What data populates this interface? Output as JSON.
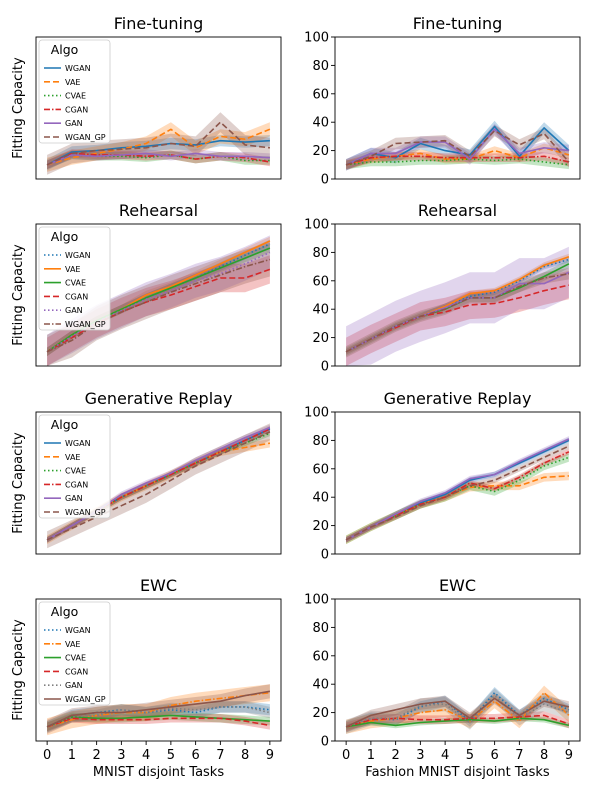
{
  "chart_data": [
    {
      "type": "line",
      "title": "Fine-tuning",
      "ylabel": "Fitting Capacity",
      "xlabel": "",
      "ylim": [
        0,
        100
      ],
      "yticks_visible": false,
      "xticks_visible": false,
      "legend": {
        "title": "Algo",
        "location": "top-left"
      },
      "series": [
        {
          "name": "WGAN",
          "style": "solid",
          "color": "#1f77b4",
          "values": [
            10,
            19,
            20,
            22,
            23,
            25,
            24,
            27,
            26,
            27
          ],
          "band": 4
        },
        {
          "name": "VAE",
          "style": "dashed",
          "color": "#ff7f0e",
          "values": [
            10,
            15,
            18,
            21,
            25,
            35,
            22,
            30,
            28,
            35
          ],
          "band": 5
        },
        {
          "name": "CVAE",
          "style": "dotted",
          "color": "#2ca02c",
          "values": [
            10,
            17,
            16,
            16,
            15,
            17,
            14,
            16,
            13,
            13
          ],
          "band": 3
        },
        {
          "name": "CGAN",
          "style": "dashdot",
          "color": "#d62728",
          "values": [
            10,
            18,
            17,
            17,
            16,
            17,
            14,
            16,
            15,
            12
          ],
          "band": 3
        },
        {
          "name": "GAN",
          "style": "solid",
          "color": "#9467bd",
          "values": [
            10,
            17,
            16,
            17,
            18,
            16,
            18,
            16,
            16,
            15
          ],
          "band": 3
        },
        {
          "name": "WGAN_GP",
          "style": "dashed",
          "color": "#8c564b",
          "values": [
            10,
            18,
            20,
            21,
            22,
            25,
            23,
            40,
            24,
            22
          ],
          "band": 7
        }
      ]
    },
    {
      "type": "line",
      "title": "Fine-tuning",
      "ylabel": "",
      "xlabel": "",
      "ylim": [
        0,
        100
      ],
      "yticks": [
        0,
        20,
        40,
        60,
        80,
        100
      ],
      "yticks_visible": true,
      "xticks_visible": false,
      "series": [
        {
          "name": "WGAN",
          "style": "solid",
          "color": "#1f77b4",
          "values": [
            10,
            18,
            15,
            25,
            20,
            17,
            37,
            16,
            36,
            20
          ],
          "band": 4
        },
        {
          "name": "VAE",
          "style": "dashed",
          "color": "#ff7f0e",
          "values": [
            10,
            14,
            16,
            18,
            14,
            14,
            20,
            15,
            22,
            17
          ],
          "band": 3
        },
        {
          "name": "CVAE",
          "style": "dotted",
          "color": "#2ca02c",
          "values": [
            10,
            12,
            12,
            13,
            13,
            14,
            13,
            14,
            12,
            10
          ],
          "band": 3
        },
        {
          "name": "CGAN",
          "style": "dashdot",
          "color": "#d62728",
          "values": [
            10,
            15,
            16,
            16,
            15,
            15,
            15,
            15,
            16,
            12
          ],
          "band": 3
        },
        {
          "name": "GAN",
          "style": "solid",
          "color": "#9467bd",
          "values": [
            10,
            18,
            18,
            26,
            26,
            14,
            35,
            18,
            22,
            20
          ],
          "band": 4
        },
        {
          "name": "WGAN_GP",
          "style": "dashed",
          "color": "#8c564b",
          "values": [
            10,
            16,
            25,
            26,
            27,
            16,
            34,
            24,
            32,
            12
          ],
          "band": 4
        }
      ]
    },
    {
      "type": "line",
      "title": "Rehearsal",
      "ylabel": "Fitting Capacity",
      "xlabel": "",
      "ylim": [
        0,
        100
      ],
      "yticks_visible": false,
      "xticks_visible": false,
      "legend": {
        "title": "Algo",
        "location": "top-left"
      },
      "series": [
        {
          "name": "WGAN",
          "style": "dotted",
          "color": "#1f77b4",
          "values": [
            10,
            22,
            32,
            40,
            48,
            55,
            62,
            70,
            78,
            86
          ],
          "band": 3
        },
        {
          "name": "VAE",
          "style": "solid",
          "color": "#ff7f0e",
          "values": [
            10,
            22,
            32,
            40,
            50,
            56,
            64,
            72,
            80,
            88
          ],
          "band": 3
        },
        {
          "name": "CVAE",
          "style": "solid",
          "color": "#2ca02c",
          "values": [
            10,
            22,
            32,
            40,
            48,
            55,
            62,
            69,
            76,
            83
          ],
          "band": 3
        },
        {
          "name": "CGAN",
          "style": "dashed",
          "color": "#d62728",
          "values": [
            10,
            20,
            30,
            38,
            45,
            50,
            56,
            62,
            62,
            68
          ],
          "band": 10
        },
        {
          "name": "GAN",
          "style": "dotted",
          "color": "#9467bd",
          "values": [
            10,
            21,
            31,
            39,
            47,
            53,
            60,
            65,
            72,
            80
          ],
          "band": 12
        },
        {
          "name": "WGAN_GP",
          "style": "dashdot",
          "color": "#8c564b",
          "values": [
            10,
            18,
            30,
            38,
            45,
            52,
            58,
            64,
            70,
            75
          ],
          "band": 12
        }
      ]
    },
    {
      "type": "line",
      "title": "Rehearsal",
      "ylabel": "",
      "xlabel": "",
      "ylim": [
        0,
        100
      ],
      "yticks": [
        0,
        20,
        40,
        60,
        80,
        100
      ],
      "yticks_visible": true,
      "xticks_visible": false,
      "series": [
        {
          "name": "WGAN",
          "style": "dotted",
          "color": "#1f77b4",
          "values": [
            10,
            19,
            28,
            35,
            42,
            49,
            52,
            60,
            70,
            75
          ],
          "band": 2
        },
        {
          "name": "VAE",
          "style": "solid",
          "color": "#ff7f0e",
          "values": [
            10,
            19,
            28,
            35,
            42,
            51,
            53,
            61,
            71,
            77
          ],
          "band": 2
        },
        {
          "name": "CVAE",
          "style": "solid",
          "color": "#2ca02c",
          "values": [
            10,
            19,
            28,
            35,
            40,
            48,
            48,
            55,
            63,
            72
          ],
          "band": 3
        },
        {
          "name": "CGAN",
          "style": "dashed",
          "color": "#d62728",
          "values": [
            10,
            19,
            27,
            35,
            38,
            43,
            44,
            48,
            53,
            57
          ],
          "band": 10
        },
        {
          "name": "GAN",
          "style": "solid",
          "color": "#9467bd",
          "values": [
            10,
            19,
            28,
            35,
            41,
            48,
            48,
            58,
            58,
            66
          ],
          "band": 18
        },
        {
          "name": "WGAN_GP",
          "style": "dashdot",
          "color": "#8c564b",
          "values": [
            10,
            19,
            28,
            35,
            40,
            48,
            48,
            56,
            62,
            65
          ],
          "band": 4
        }
      ]
    },
    {
      "type": "line",
      "title": "Generative Replay",
      "ylabel": "Fitting Capacity",
      "xlabel": "",
      "ylim": [
        0,
        100
      ],
      "yticks_visible": false,
      "xticks_visible": false,
      "legend": {
        "title": "Algo",
        "location": "top-left"
      },
      "series": [
        {
          "name": "WGAN",
          "style": "solid",
          "color": "#1f77b4",
          "values": [
            10,
            20,
            30,
            40,
            48,
            56,
            64,
            72,
            80,
            88
          ],
          "band": 2
        },
        {
          "name": "VAE",
          "style": "dashed",
          "color": "#ff7f0e",
          "values": [
            10,
            20,
            30,
            40,
            48,
            56,
            64,
            72,
            75,
            78
          ],
          "band": 3
        },
        {
          "name": "CVAE",
          "style": "dotted",
          "color": "#2ca02c",
          "values": [
            10,
            20,
            30,
            40,
            48,
            56,
            64,
            72,
            78,
            85
          ],
          "band": 2
        },
        {
          "name": "CGAN",
          "style": "dashdot",
          "color": "#d62728",
          "values": [
            10,
            20,
            30,
            40,
            48,
            56,
            64,
            72,
            80,
            88
          ],
          "band": 2
        },
        {
          "name": "GAN",
          "style": "solid",
          "color": "#9467bd",
          "values": [
            10,
            20,
            30,
            42,
            50,
            57,
            66,
            74,
            82,
            89
          ],
          "band": 2
        },
        {
          "name": "WGAN_GP",
          "style": "dashed",
          "color": "#8c564b",
          "values": [
            10,
            18,
            26,
            34,
            42,
            52,
            62,
            70,
            78,
            86
          ],
          "band": 6
        }
      ]
    },
    {
      "type": "line",
      "title": "Generative Replay",
      "ylabel": "",
      "xlabel": "",
      "ylim": [
        0,
        100
      ],
      "yticks": [
        0,
        20,
        40,
        60,
        80,
        100
      ],
      "yticks_visible": true,
      "xticks_visible": false,
      "series": [
        {
          "name": "WGAN",
          "style": "solid",
          "color": "#1f77b4",
          "values": [
            10,
            19,
            28,
            36,
            42,
            52,
            56,
            64,
            72,
            80
          ],
          "band": 2
        },
        {
          "name": "VAE",
          "style": "dashed",
          "color": "#ff7f0e",
          "values": [
            10,
            19,
            27,
            35,
            40,
            47,
            48,
            48,
            54,
            55
          ],
          "band": 3
        },
        {
          "name": "CVAE",
          "style": "dotted",
          "color": "#2ca02c",
          "values": [
            10,
            19,
            27,
            35,
            40,
            48,
            44,
            52,
            62,
            68
          ],
          "band": 3
        },
        {
          "name": "CGAN",
          "style": "dashdot",
          "color": "#d62728",
          "values": [
            10,
            19,
            27,
            35,
            40,
            50,
            46,
            54,
            64,
            72
          ],
          "band": 2
        },
        {
          "name": "GAN",
          "style": "solid",
          "color": "#9467bd",
          "values": [
            10,
            19,
            28,
            37,
            43,
            53,
            56,
            65,
            73,
            81
          ],
          "band": 2
        },
        {
          "name": "WGAN_GP",
          "style": "dashed",
          "color": "#8c564b",
          "values": [
            10,
            19,
            26,
            34,
            40,
            48,
            52,
            60,
            68,
            76
          ],
          "band": 2
        }
      ]
    },
    {
      "type": "line",
      "title": "EWC",
      "ylabel": "Fitting Capacity",
      "xlabel": "MNIST disjoint Tasks",
      "ylim": [
        0,
        100
      ],
      "yticks_visible": false,
      "xticks_visible": true,
      "xticks": [
        0,
        1,
        2,
        3,
        4,
        5,
        6,
        7,
        8,
        9
      ],
      "legend": {
        "title": "Algo",
        "location": "top-left"
      },
      "series": [
        {
          "name": "WGAN",
          "style": "dotted",
          "color": "#1f77b4",
          "values": [
            10,
            18,
            20,
            22,
            20,
            22,
            20,
            24,
            24,
            22
          ],
          "band": 4
        },
        {
          "name": "VAE",
          "style": "dashdot",
          "color": "#ff7f0e",
          "values": [
            10,
            15,
            18,
            20,
            20,
            25,
            28,
            30,
            32,
            34
          ],
          "band": 6
        },
        {
          "name": "CVAE",
          "style": "solid",
          "color": "#2ca02c",
          "values": [
            10,
            17,
            16,
            16,
            17,
            18,
            17,
            16,
            15,
            14
          ],
          "band": 3
        },
        {
          "name": "CGAN",
          "style": "dashed",
          "color": "#d62728",
          "values": [
            10,
            16,
            15,
            15,
            15,
            16,
            16,
            16,
            14,
            11
          ],
          "band": 3
        },
        {
          "name": "GAN",
          "style": "dotted",
          "color": "#7f7f7f",
          "values": [
            10,
            17,
            18,
            22,
            20,
            23,
            22,
            24,
            24,
            20
          ],
          "band": 4
        },
        {
          "name": "WGAN_GP",
          "style": "solid",
          "color": "#8c564b",
          "values": [
            10,
            18,
            20,
            20,
            22,
            24,
            26,
            28,
            32,
            35
          ],
          "band": 5
        }
      ]
    },
    {
      "type": "line",
      "title": "EWC",
      "ylabel": "",
      "xlabel": "Fashion MNIST disjoint Tasks",
      "ylim": [
        0,
        100
      ],
      "yticks": [
        0,
        20,
        40,
        60,
        80,
        100
      ],
      "yticks_visible": true,
      "xticks_visible": true,
      "xticks": [
        0,
        1,
        2,
        3,
        4,
        5,
        6,
        7,
        8,
        9
      ],
      "series": [
        {
          "name": "WGAN",
          "style": "dotted",
          "color": "#1f77b4",
          "values": [
            10,
            16,
            15,
            24,
            28,
            14,
            34,
            18,
            30,
            22
          ],
          "band": 4
        },
        {
          "name": "VAE",
          "style": "dashdot",
          "color": "#ff7f0e",
          "values": [
            10,
            14,
            16,
            20,
            22,
            14,
            28,
            14,
            34,
            18
          ],
          "band": 5
        },
        {
          "name": "CVAE",
          "style": "solid",
          "color": "#2ca02c",
          "values": [
            10,
            13,
            11,
            13,
            14,
            15,
            14,
            16,
            15,
            11
          ],
          "band": 2
        },
        {
          "name": "CGAN",
          "style": "dashed",
          "color": "#d62728",
          "values": [
            10,
            15,
            16,
            15,
            15,
            16,
            16,
            17,
            18,
            12
          ],
          "band": 3
        },
        {
          "name": "GAN",
          "style": "dotted",
          "color": "#7f7f7f",
          "values": [
            10,
            16,
            16,
            25,
            26,
            13,
            32,
            16,
            26,
            20
          ],
          "band": 5
        },
        {
          "name": "WGAN_GP",
          "style": "solid",
          "color": "#8c564b",
          "values": [
            10,
            18,
            22,
            26,
            28,
            16,
            30,
            18,
            28,
            24
          ],
          "band": 4
        }
      ]
    }
  ]
}
